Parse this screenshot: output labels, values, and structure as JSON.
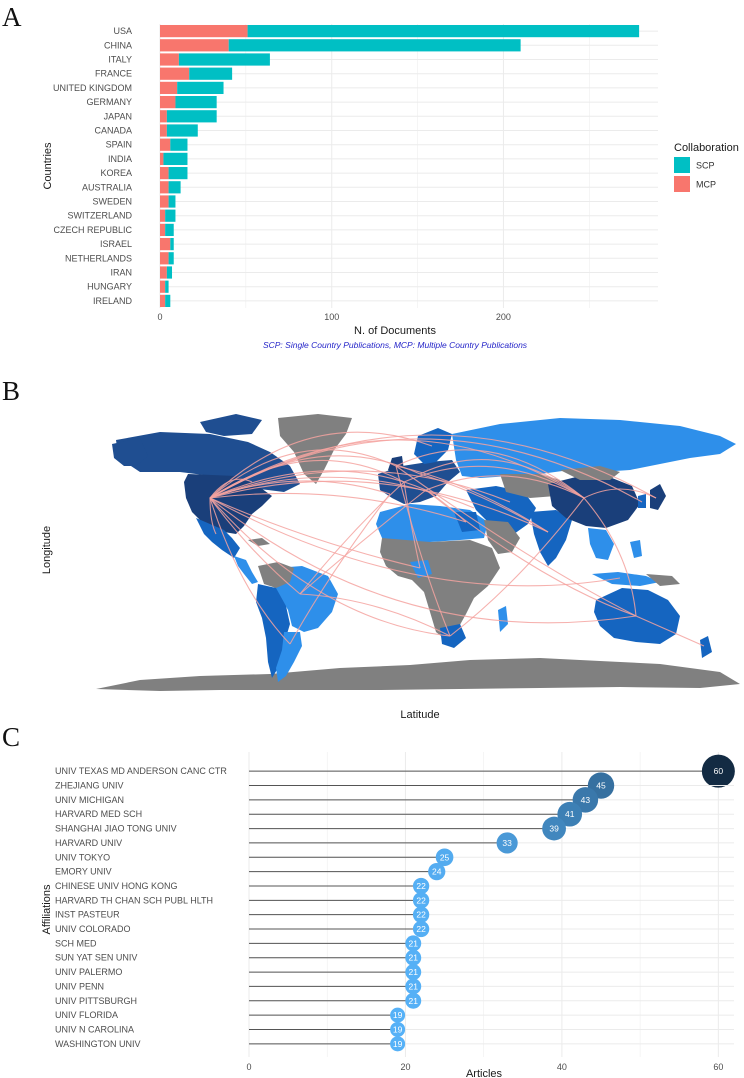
{
  "panels": {
    "a": "A",
    "b": "B",
    "c": "C"
  },
  "chart_data": [
    {
      "type": "bar",
      "stacked": true,
      "orientation": "horizontal",
      "categories": [
        "USA",
        "CHINA",
        "ITALY",
        "FRANCE",
        "UNITED KINGDOM",
        "GERMANY",
        "JAPAN",
        "CANADA",
        "SPAIN",
        "INDIA",
        "KOREA",
        "AUSTRALIA",
        "SWEDEN",
        "SWITZERLAND",
        "CZECH REPUBLIC",
        "ISRAEL",
        "NETHERLANDS",
        "IRAN",
        "HUNGARY",
        "IRELAND"
      ],
      "series": [
        {
          "name": "MCP",
          "color": "#F8766D",
          "values": [
            51,
            40,
            11,
            17,
            10,
            9,
            4,
            4,
            6,
            2,
            5,
            5,
            5,
            3,
            3,
            6,
            5,
            4,
            3,
            3
          ]
        },
        {
          "name": "SCP",
          "color": "#00BFC4",
          "values": [
            228,
            170,
            53,
            25,
            27,
            24,
            29,
            18,
            10,
            14,
            11,
            7,
            4,
            6,
            5,
            2,
            3,
            3,
            2,
            3
          ]
        }
      ],
      "xlabel": "N. of Documents",
      "ylabel": "Countries",
      "xlim": [
        0,
        290
      ],
      "xticks": [
        0,
        100,
        200
      ],
      "legend": {
        "title": "Collaboration",
        "position": "right",
        "entries": [
          "SCP",
          "MCP"
        ]
      },
      "caption": "SCP: Single Country Publications, MCP: Multiple Country Publications"
    },
    {
      "type": "map",
      "xlabel": "Latitude",
      "ylabel": "Longitude",
      "colors": {
        "ocean": "#ffffff",
        "no_data": "#808080",
        "high": "#1f4e91",
        "medium": "#1565c0",
        "low": "#2e8fea",
        "link": "#f4a3a0"
      }
    },
    {
      "type": "lollipop",
      "categories": [
        "UNIV TEXAS MD ANDERSON CANC CTR",
        "ZHEJIANG UNIV",
        "UNIV MICHIGAN",
        "HARVARD MED SCH",
        "SHANGHAI JIAO TONG UNIV",
        "HARVARD UNIV",
        "UNIV TOKYO",
        "EMORY UNIV",
        "CHINESE UNIV HONG KONG",
        "HARVARD TH CHAN SCH PUBL HLTH",
        "INST PASTEUR",
        "UNIV COLORADO",
        "SCH MED",
        "SUN YAT SEN UNIV",
        "UNIV PALERMO",
        "UNIV PENN",
        "UNIV PITTSBURGH",
        "UNIV FLORIDA",
        "UNIV N CAROLINA",
        "WASHINGTON UNIV"
      ],
      "values": [
        60,
        45,
        43,
        41,
        39,
        33,
        25,
        24,
        22,
        22,
        22,
        22,
        21,
        21,
        21,
        21,
        21,
        19,
        19,
        19
      ],
      "xlabel": "Articles",
      "ylabel": "Affiliations",
      "xlim": [
        0,
        62
      ],
      "xticks": [
        0,
        20,
        40,
        60
      ],
      "colors": {
        "low": "#56B1F7",
        "high": "#132B43"
      }
    }
  ]
}
